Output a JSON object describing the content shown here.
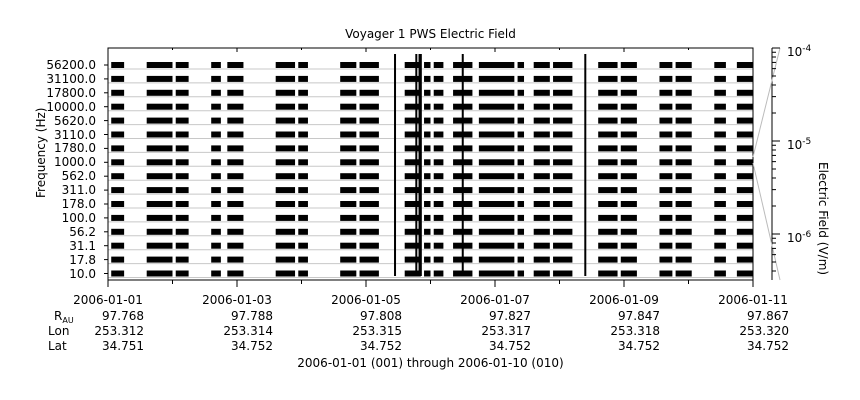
{
  "chart_data": {
    "type": "heatmap",
    "title": "Voyager 1 PWS Electric Field",
    "ylabel": "Frequency (Hz)",
    "colorbar_label": "Electric Field (V/m)",
    "y_channels": [
      "10.0",
      "17.8",
      "31.1",
      "56.2",
      "100.0",
      "178.0",
      "311.0",
      "562.0",
      "1000.0",
      "1780.0",
      "3110.0",
      "5620.0",
      "10000.0",
      "17800.0",
      "31100.0",
      "56200.0"
    ],
    "y_tick_labels": [
      "10.0",
      "17.8",
      "31.1",
      "56.2",
      "100.0",
      "178.0",
      "311.0",
      "562.0",
      "1000.0",
      "1780.0",
      "3110.0",
      "5620.0",
      "10000.0",
      "17800.0",
      "31100.0",
      "56200.0"
    ],
    "x_range_days": [
      0,
      10
    ],
    "x_tick_labels": [
      "2006-01-01",
      "2006-01-03",
      "2006-01-05",
      "2006-01-07",
      "2006-01-09",
      "2006-01-11"
    ],
    "colorbar_ticks": [
      {
        "base": "10",
        "exp": "-4"
      },
      {
        "base": "10",
        "exp": "-5"
      },
      {
        "base": "10",
        "exp": "-6"
      }
    ],
    "data_segments_days": [
      [
        0.05,
        0.25
      ],
      [
        0.6,
        1.0
      ],
      [
        1.05,
        1.25
      ],
      [
        1.6,
        1.75
      ],
      [
        1.85,
        2.1
      ],
      [
        2.6,
        2.9
      ],
      [
        2.95,
        3.1
      ],
      [
        3.6,
        3.85
      ],
      [
        3.9,
        4.2
      ],
      [
        4.6,
        4.85
      ],
      [
        4.9,
        5.0
      ],
      [
        5.05,
        5.2
      ],
      [
        5.35,
        5.65
      ],
      [
        5.75,
        6.3
      ],
      [
        6.35,
        6.45
      ],
      [
        6.6,
        6.85
      ],
      [
        6.9,
        7.2
      ],
      [
        7.6,
        7.9
      ],
      [
        7.95,
        8.2
      ],
      [
        8.55,
        8.75
      ],
      [
        8.8,
        9.05
      ],
      [
        9.4,
        9.58
      ],
      [
        9.75,
        10.0
      ]
    ],
    "burst_days": [
      4.45,
      4.78,
      4.83,
      4.85,
      5.5,
      7.4
    ],
    "colorscale": "grayscale"
  },
  "ephemeris": {
    "rows": [
      {
        "label": "R",
        "sub": "AU",
        "values": [
          "97.768",
          "97.788",
          "97.808",
          "97.827",
          "97.847",
          "97.867"
        ]
      },
      {
        "label": "Lon",
        "sub": "",
        "values": [
          "253.312",
          "253.314",
          "253.315",
          "253.317",
          "253.318",
          "253.320"
        ]
      },
      {
        "label": "Lat",
        "sub": "",
        "values": [
          "34.751",
          "34.752",
          "34.752",
          "34.752",
          "34.752",
          "34.752"
        ]
      }
    ]
  },
  "footer": "2006-01-01 (001) through 2006-01-10 (010)"
}
